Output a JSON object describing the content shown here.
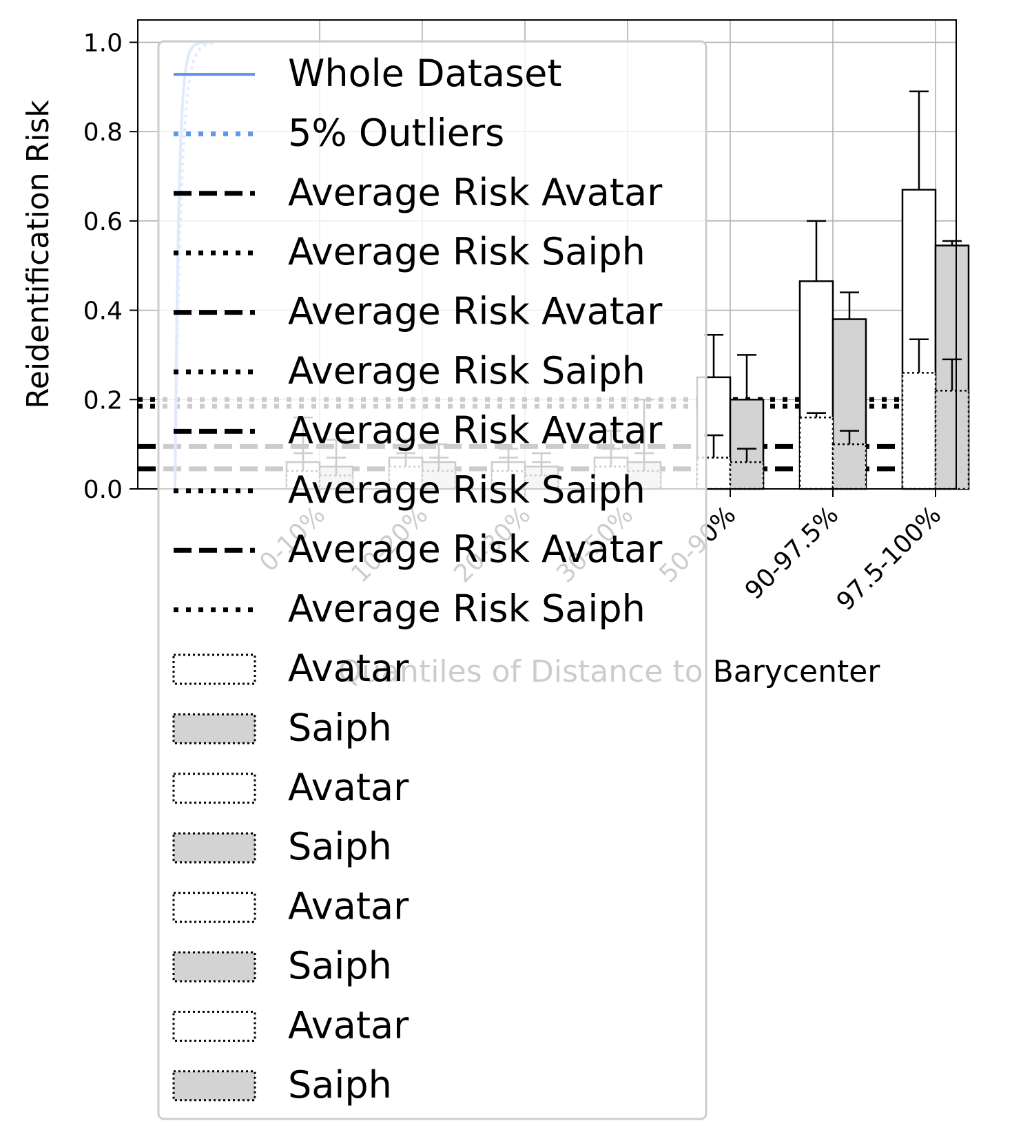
{
  "chart_data": {
    "type": "bar",
    "ylabel": "Reidentification Risk",
    "xlabel": "Quantiles of Distance to Barycenter",
    "ylim": [
      0,
      1.05
    ],
    "yticks": [
      "0.0",
      "0.2",
      "0.4",
      "0.6",
      "0.8",
      "1.0"
    ],
    "categories": [
      "0-10%",
      "10-20%",
      "20-30%",
      "30-50%",
      "50-90%",
      "90-97.5%",
      "97.5-100%"
    ],
    "grid": true,
    "legend_position": "upper-left, overlapping plot",
    "series": [
      {
        "name": "Avatar",
        "fill": "#ffffff",
        "edge": "#000000",
        "values": [
          0.06,
          0.07,
          0.06,
          0.07,
          0.25,
          0.465,
          0.67
        ],
        "err_high": [
          0.16,
          0.11,
          0.09,
          0.13,
          0.345,
          0.6,
          0.89
        ]
      },
      {
        "name": "Saiph",
        "fill": "#d3d3d3",
        "edge": "#000000",
        "values": [
          0.05,
          0.06,
          0.05,
          0.06,
          0.2,
          0.38,
          0.545
        ],
        "err_high": [
          0.11,
          0.1,
          0.08,
          0.2,
          0.3,
          0.44,
          0.555
        ]
      },
      {
        "name": "Avatar",
        "fill": "#ffffff",
        "edge": "#000000",
        "values": [
          0.04,
          0.05,
          0.04,
          0.05,
          0.07,
          0.16,
          0.26
        ],
        "err_high": [
          0.08,
          0.08,
          0.07,
          0.09,
          0.12,
          0.17,
          0.335
        ]
      },
      {
        "name": "Saiph",
        "fill": "#d3d3d3",
        "edge": "#000000",
        "values": [
          0.03,
          0.04,
          0.03,
          0.04,
          0.06,
          0.1,
          0.22
        ],
        "err_high": [
          0.07,
          0.07,
          0.06,
          0.08,
          0.09,
          0.13,
          0.29
        ]
      }
    ],
    "avg_lines": [
      {
        "name": "Average Risk Avatar",
        "style": "dashed",
        "y": 0.095
      },
      {
        "name": "Average Risk Saiph",
        "style": "dotted",
        "y": 0.2
      },
      {
        "name": "Average Risk Avatar",
        "style": "dashed",
        "y": 0.045
      },
      {
        "name": "Average Risk Saiph",
        "style": "dotted",
        "y": 0.185
      }
    ],
    "cdf_lines": [
      {
        "name": "Whole Dataset",
        "color": "#6495ed",
        "style": "solid"
      },
      {
        "name": "5% Outliers",
        "color": "#6495ed",
        "style": "dotted"
      }
    ],
    "legend": [
      {
        "label": "Whole Dataset",
        "kind": "line",
        "style": "solid",
        "color": "#6495ed"
      },
      {
        "label": "5% Outliers",
        "kind": "line",
        "style": "dotted",
        "color": "#6495ed"
      },
      {
        "label": "Average Risk Avatar",
        "kind": "line",
        "style": "dashed",
        "color": "#000000"
      },
      {
        "label": "Average Risk Saiph",
        "kind": "line",
        "style": "dotted",
        "color": "#000000"
      },
      {
        "label": "Average Risk Avatar",
        "kind": "line",
        "style": "dashed",
        "color": "#000000"
      },
      {
        "label": "Average Risk Saiph",
        "kind": "line",
        "style": "dotted",
        "color": "#000000"
      },
      {
        "label": "Average Risk Avatar",
        "kind": "line",
        "style": "dashed",
        "color": "#000000"
      },
      {
        "label": "Average Risk Saiph",
        "kind": "line",
        "style": "dotted",
        "color": "#000000"
      },
      {
        "label": "Average Risk Avatar",
        "kind": "line",
        "style": "dashed",
        "color": "#000000"
      },
      {
        "label": "Average Risk Saiph",
        "kind": "line",
        "style": "dotted",
        "color": "#000000"
      },
      {
        "label": "Avatar",
        "kind": "patch",
        "fill": "#ffffff"
      },
      {
        "label": "Saiph",
        "kind": "patch",
        "fill": "#d3d3d3"
      },
      {
        "label": "Avatar",
        "kind": "patch",
        "fill": "#ffffff"
      },
      {
        "label": "Saiph",
        "kind": "patch",
        "fill": "#d3d3d3"
      },
      {
        "label": "Avatar",
        "kind": "patch",
        "fill": "#ffffff"
      },
      {
        "label": "Saiph",
        "kind": "patch",
        "fill": "#d3d3d3"
      },
      {
        "label": "Avatar",
        "kind": "patch",
        "fill": "#ffffff"
      },
      {
        "label": "Saiph",
        "kind": "patch",
        "fill": "#d3d3d3"
      }
    ]
  }
}
